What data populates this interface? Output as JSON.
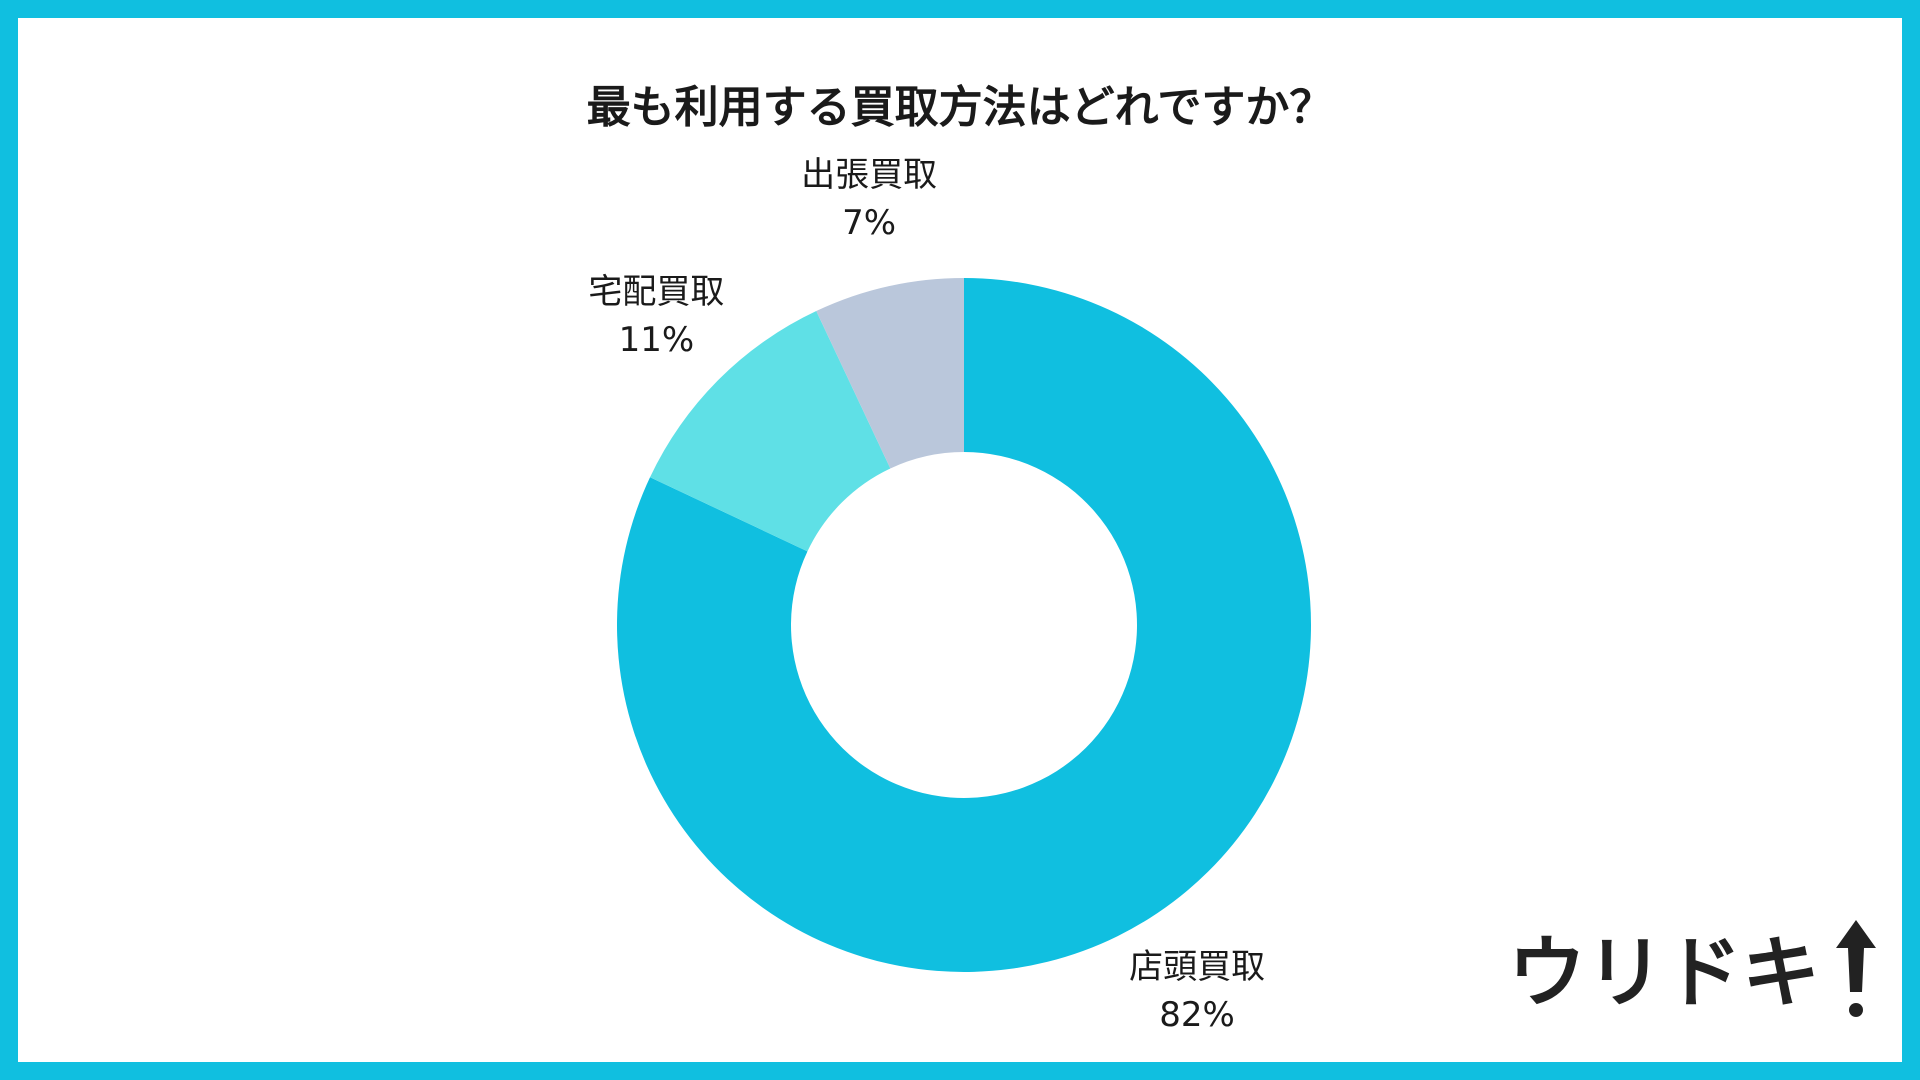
{
  "chart_data": {
    "type": "donut",
    "title": "最も利用する買取方法はどれですか？",
    "categories": [
      "店頭買取",
      "宅配買取",
      "出張買取"
    ],
    "values": [
      82,
      11,
      7
    ],
    "value_labels": [
      "82%",
      "11%",
      "7%"
    ],
    "colors": [
      "#10bfe0",
      "#5fe0e6",
      "#bac7db"
    ]
  },
  "logo": "ウリドキ"
}
